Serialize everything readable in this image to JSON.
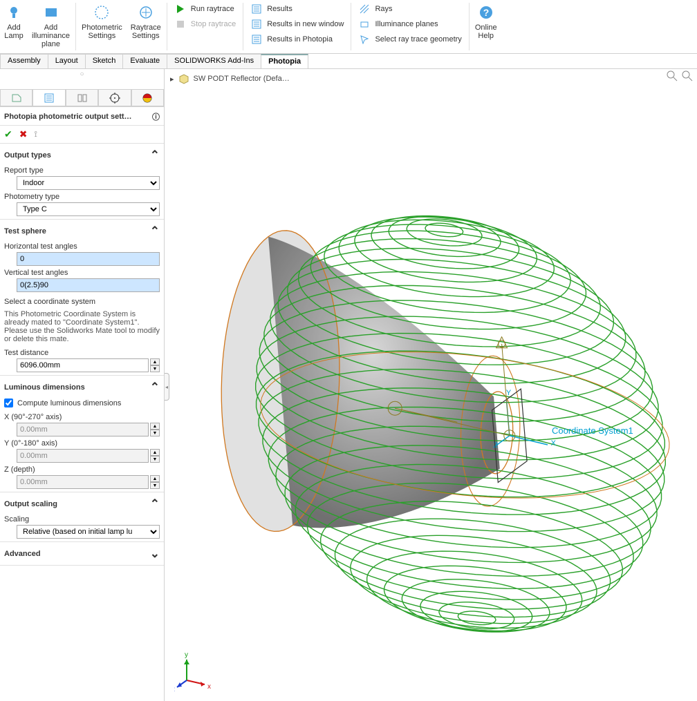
{
  "ribbon": {
    "add_lamp": "Add\nLamp",
    "add_illum": "Add\nilluminance\nplane",
    "photometric_settings": "Photometric\nSettings",
    "raytrace_settings": "Raytrace\nSettings",
    "run_raytrace": "Run raytrace",
    "stop_raytrace": "Stop raytrace",
    "results": "Results",
    "results_new_window": "Results in new window",
    "results_photopia": "Results in Photopia",
    "rays": "Rays",
    "illum_planes": "Illuminance planes",
    "select_geom": "Select ray trace geometry",
    "online_help": "Online\nHelp"
  },
  "tabs": {
    "items": [
      "Assembly",
      "Layout",
      "Sketch",
      "Evaluate",
      "SOLIDWORKS Add-Ins",
      "Photopia"
    ],
    "active": "Photopia"
  },
  "panel": {
    "title": "Photopia photometric output sett…",
    "sections": {
      "output_types": {
        "title": "Output types",
        "report_type_label": "Report type",
        "report_type_value": "Indoor",
        "photometry_type_label": "Photometry type",
        "photometry_type_value": "Type C"
      },
      "test_sphere": {
        "title": "Test sphere",
        "horiz_label": "Horizontal test angles",
        "horiz_value": "0",
        "vert_label": "Vertical test angles",
        "vert_value": "0(2.5)90",
        "coord_label": "Select a coordinate system",
        "coord_note": "This Photometric Coordinate System is already mated to \"Coordinate System1\". Please use the Solidworks Mate tool to modify or delete this mate.",
        "test_distance_label": "Test distance",
        "test_distance_value": "6096.00mm"
      },
      "lum_dim": {
        "title": "Luminous dimensions",
        "compute_label": "Compute luminous dimensions",
        "compute_checked": true,
        "x_label": "X (90°-270° axis)",
        "x_value": "0.00mm",
        "y_label": "Y (0°-180° axis)",
        "y_value": "0.00mm",
        "z_label": "Z (depth)",
        "z_value": "0.00mm"
      },
      "output_scaling": {
        "title": "Output scaling",
        "scaling_label": "Scaling",
        "scaling_value": "Relative (based on initial lamp lu"
      },
      "advanced": {
        "title": "Advanced"
      }
    }
  },
  "viewport": {
    "crumb": "SW PODT Reflector  (Defa…",
    "coord_label": "Coordinate System1",
    "triad": {
      "x": "x",
      "y": "y",
      "z": "z",
      "colors": {
        "x": "#d01414",
        "y": "#1aa01a",
        "z": "#1a3ad0"
      }
    },
    "wire": {
      "stroke": "#2aa02a",
      "outline": "#d07820",
      "csys": "#00a0d0",
      "body": "#9a9a9a"
    }
  }
}
